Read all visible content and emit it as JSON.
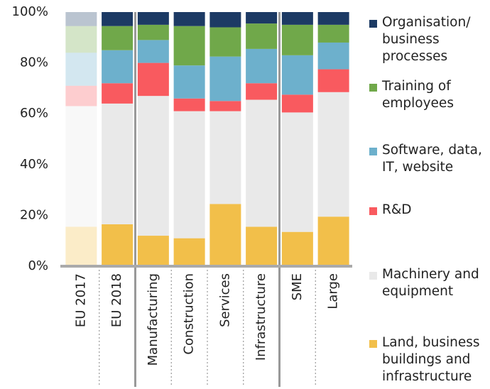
{
  "chart_data": {
    "type": "stacked_bar",
    "categories": [
      "EU 2017",
      "EU 2018",
      "Manufacturing",
      "Construction",
      "Services",
      "Infrastructure",
      "SME",
      "Large"
    ],
    "faded": [
      true,
      false,
      false,
      false,
      false,
      false,
      false,
      false
    ],
    "series": [
      {
        "name": "Land, business buildings and infrastructure",
        "color": "#f2bf4a",
        "values": [
          15.5,
          16.5,
          12,
          11,
          24.5,
          15.5,
          13.5,
          19.5
        ]
      },
      {
        "name": "Machinery and equipment",
        "color": "#e9e9e9",
        "values": [
          47.5,
          47.5,
          55,
          50,
          36.5,
          50,
          47,
          49
        ]
      },
      {
        "name": "R&D",
        "color": "#f95a5f",
        "values": [
          8,
          8,
          13,
          5,
          4,
          6.5,
          7,
          9
        ]
      },
      {
        "name": "Software, data, IT, website",
        "color": "#6db0cc",
        "values": [
          13,
          13,
          9,
          13,
          17.5,
          13.5,
          15.5,
          10.5
        ]
      },
      {
        "name": "Training of employees",
        "color": "#70a84a",
        "values": [
          10.5,
          9.5,
          6,
          15.5,
          11.5,
          10,
          12,
          7
        ]
      },
      {
        "name": "Organisation/ business processes",
        "color": "#1c3a64",
        "values": [
          5.5,
          5.5,
          5,
          5.5,
          6,
          4.5,
          5,
          5
        ]
      }
    ],
    "ylim": [
      0,
      100
    ],
    "yticks": [
      {
        "value": 0,
        "label": "0%"
      },
      {
        "value": 20,
        "label": "20%"
      },
      {
        "value": 40,
        "label": "40%"
      },
      {
        "value": 60,
        "label": "60%"
      },
      {
        "value": 80,
        "label": "80%"
      },
      {
        "value": 100,
        "label": "100%"
      }
    ],
    "legend": "right"
  }
}
